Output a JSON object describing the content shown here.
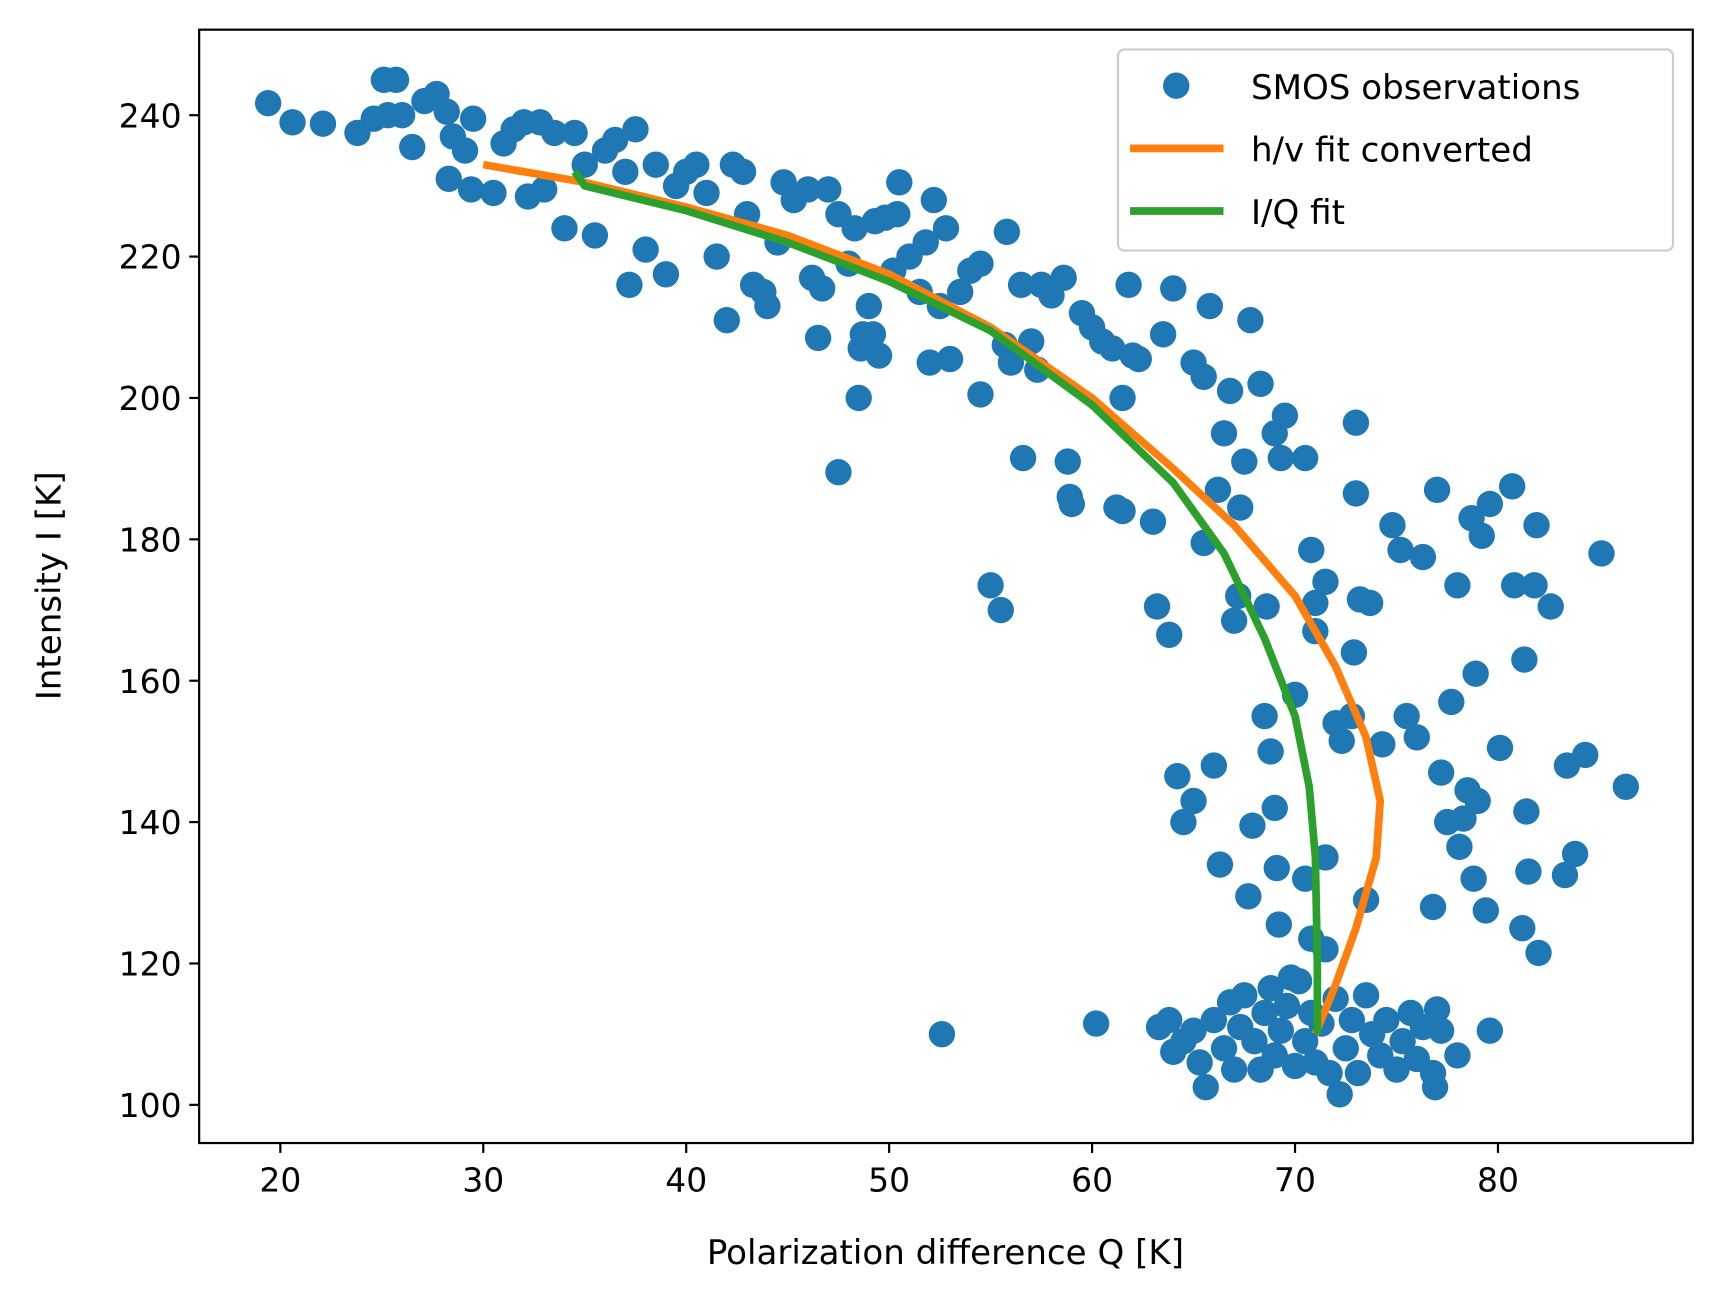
{
  "chart_data": {
    "type": "scatter",
    "title": "",
    "xlabel": "Polarization difference Q [K]",
    "ylabel": "Intensity I [K]",
    "xlim": [
      16,
      89.6
    ],
    "ylim": [
      94.6,
      252.1
    ],
    "xticks": [
      20,
      30,
      40,
      50,
      60,
      70,
      80
    ],
    "yticks": [
      100,
      120,
      140,
      160,
      180,
      200,
      220,
      240
    ],
    "grid": false,
    "legend_position": "top-right",
    "series": [
      {
        "name": "SMOS observations",
        "type": "scatter",
        "color": "#1f77b4",
        "points": [
          [
            19.4,
            241.7
          ],
          [
            20.6,
            239
          ],
          [
            22.1,
            238.8
          ],
          [
            23.8,
            237.5
          ],
          [
            25.1,
            245
          ],
          [
            25.7,
            245
          ],
          [
            24.6,
            239.5
          ],
          [
            25.3,
            240
          ],
          [
            26.0,
            240
          ],
          [
            26.5,
            235.5
          ],
          [
            27.1,
            242
          ],
          [
            27.7,
            243
          ],
          [
            28.2,
            240.5
          ],
          [
            28.3,
            231
          ],
          [
            28.5,
            237
          ],
          [
            29.1,
            235
          ],
          [
            29.5,
            239.5
          ],
          [
            29.4,
            229.5
          ],
          [
            30.5,
            229
          ],
          [
            31.0,
            236
          ],
          [
            31.5,
            238
          ],
          [
            32.0,
            239
          ],
          [
            32.2,
            228.5
          ],
          [
            32.8,
            239
          ],
          [
            33.0,
            229.5
          ],
          [
            33.5,
            237.5
          ],
          [
            34.0,
            224
          ],
          [
            34.5,
            237.5
          ],
          [
            35.0,
            233
          ],
          [
            35.5,
            223
          ],
          [
            36.0,
            235
          ],
          [
            36.5,
            236.5
          ],
          [
            37.0,
            232
          ],
          [
            37.2,
            216
          ],
          [
            37.5,
            238
          ],
          [
            38.0,
            221
          ],
          [
            38.5,
            233
          ],
          [
            39.0,
            217.5
          ],
          [
            39.5,
            230
          ],
          [
            40.0,
            232
          ],
          [
            40.5,
            233
          ],
          [
            41.0,
            229
          ],
          [
            41.5,
            220
          ],
          [
            42.0,
            211
          ],
          [
            42.3,
            233
          ],
          [
            42.8,
            232
          ],
          [
            43.0,
            226
          ],
          [
            43.3,
            216
          ],
          [
            43.8,
            215
          ],
          [
            44.0,
            213
          ],
          [
            44.5,
            222
          ],
          [
            44.8,
            230.5
          ],
          [
            45.3,
            228
          ],
          [
            46.0,
            229.5
          ],
          [
            46.2,
            217
          ],
          [
            46.5,
            208.5
          ],
          [
            46.7,
            215.5
          ],
          [
            47.0,
            229.5
          ],
          [
            47.5,
            226
          ],
          [
            47.5,
            189.5
          ],
          [
            48.0,
            219
          ],
          [
            48.3,
            224
          ],
          [
            48.5,
            200
          ],
          [
            48.6,
            207
          ],
          [
            48.7,
            209
          ],
          [
            49.0,
            213
          ],
          [
            49.2,
            209
          ],
          [
            49.3,
            225
          ],
          [
            49.5,
            206
          ],
          [
            49.8,
            225.5
          ],
          [
            50.2,
            218
          ],
          [
            50.4,
            226
          ],
          [
            50.5,
            230.5
          ],
          [
            51.0,
            220
          ],
          [
            51.5,
            215
          ],
          [
            51.8,
            222
          ],
          [
            52.0,
            205
          ],
          [
            52.2,
            228
          ],
          [
            52.5,
            213
          ],
          [
            52.6,
            110
          ],
          [
            52.8,
            224
          ],
          [
            53.0,
            205.5
          ],
          [
            53.5,
            215
          ],
          [
            54.0,
            218
          ],
          [
            54.5,
            200.5
          ],
          [
            54.5,
            219
          ],
          [
            55.0,
            173.5
          ],
          [
            55.5,
            170
          ],
          [
            55.7,
            207.5
          ],
          [
            55.8,
            223.5
          ],
          [
            56.0,
            205
          ],
          [
            56.5,
            216
          ],
          [
            56.6,
            191.5
          ],
          [
            57.0,
            208
          ],
          [
            57.3,
            204
          ],
          [
            57.5,
            216
          ],
          [
            58.0,
            214.5
          ],
          [
            58.6,
            217
          ],
          [
            58.8,
            191
          ],
          [
            58.9,
            186
          ],
          [
            59.0,
            185
          ],
          [
            59.5,
            212
          ],
          [
            60.0,
            210
          ],
          [
            60.2,
            111.5
          ],
          [
            60.5,
            208
          ],
          [
            61.0,
            207
          ],
          [
            61.2,
            184.5
          ],
          [
            61.5,
            184
          ],
          [
            61.5,
            200
          ],
          [
            61.8,
            216
          ],
          [
            62.0,
            206
          ],
          [
            62.3,
            205.5
          ],
          [
            63.0,
            182.5
          ],
          [
            63.2,
            170.5
          ],
          [
            63.5,
            209
          ],
          [
            63.8,
            166.5
          ],
          [
            64.0,
            215.5
          ],
          [
            64.2,
            146.5
          ],
          [
            64.5,
            140
          ],
          [
            65.0,
            143
          ],
          [
            65.0,
            205
          ],
          [
            65.5,
            203
          ],
          [
            65.5,
            179.5
          ],
          [
            65.8,
            213
          ],
          [
            66.0,
            148
          ],
          [
            66.2,
            187
          ],
          [
            66.3,
            134
          ],
          [
            66.5,
            195
          ],
          [
            66.8,
            201
          ],
          [
            67.0,
            168.5
          ],
          [
            67.2,
            172
          ],
          [
            67.3,
            184.5
          ],
          [
            67.5,
            191
          ],
          [
            67.7,
            129.5
          ],
          [
            67.8,
            211
          ],
          [
            67.9,
            139.5
          ],
          [
            68.3,
            202
          ],
          [
            68.5,
            155
          ],
          [
            68.6,
            170.5
          ],
          [
            68.8,
            150
          ],
          [
            69.0,
            195
          ],
          [
            69.0,
            142
          ],
          [
            69.1,
            133.5
          ],
          [
            69.2,
            125.5
          ],
          [
            69.3,
            191.5
          ],
          [
            69.5,
            197.5
          ],
          [
            70.0,
            158
          ],
          [
            70.5,
            191.5
          ],
          [
            70.5,
            132
          ],
          [
            70.8,
            178.5
          ],
          [
            71.0,
            171
          ],
          [
            71.0,
            167
          ],
          [
            71.5,
            174
          ],
          [
            71.5,
            135
          ],
          [
            72.0,
            154
          ],
          [
            72.3,
            151.5
          ],
          [
            72.8,
            155
          ],
          [
            72.9,
            164
          ],
          [
            73.0,
            186.5
          ],
          [
            73.2,
            171.5
          ],
          [
            73.0,
            196.5
          ],
          [
            73.5,
            129
          ],
          [
            73.7,
            171
          ],
          [
            74.3,
            151
          ],
          [
            74.8,
            182
          ],
          [
            75.2,
            178.5
          ],
          [
            75.5,
            155
          ],
          [
            76.0,
            152
          ],
          [
            76.3,
            177.5
          ],
          [
            76.8,
            128
          ],
          [
            77.0,
            187
          ],
          [
            77.2,
            147
          ],
          [
            77.5,
            140
          ],
          [
            77.7,
            157
          ],
          [
            78.0,
            173.5
          ],
          [
            78.1,
            136.5
          ],
          [
            78.3,
            140.5
          ],
          [
            78.5,
            144.5
          ],
          [
            78.7,
            183
          ],
          [
            78.8,
            132
          ],
          [
            78.9,
            161
          ],
          [
            79.0,
            143
          ],
          [
            79.2,
            180.5
          ],
          [
            79.4,
            127.5
          ],
          [
            79.6,
            185
          ],
          [
            79.6,
            110.5
          ],
          [
            80.1,
            150.5
          ],
          [
            80.7,
            187.5
          ],
          [
            80.8,
            173.5
          ],
          [
            81.2,
            125
          ],
          [
            81.3,
            163
          ],
          [
            81.4,
            141.5
          ],
          [
            81.5,
            133
          ],
          [
            81.8,
            173.5
          ],
          [
            81.9,
            182
          ],
          [
            82.0,
            121.5
          ],
          [
            82.6,
            170.5
          ],
          [
            83.3,
            132.5
          ],
          [
            83.4,
            148
          ],
          [
            83.8,
            135.5
          ],
          [
            84.3,
            149.5
          ],
          [
            85.1,
            178
          ],
          [
            86.3,
            145
          ],
          [
            63.3,
            111
          ],
          [
            63.8,
            112
          ],
          [
            64.0,
            107.5
          ],
          [
            64.5,
            109
          ],
          [
            65.0,
            110.5
          ],
          [
            65.3,
            106
          ],
          [
            65.6,
            102.5
          ],
          [
            66.0,
            112
          ],
          [
            66.5,
            108
          ],
          [
            66.8,
            114.5
          ],
          [
            67.0,
            105
          ],
          [
            67.3,
            111
          ],
          [
            67.5,
            115.5
          ],
          [
            68.0,
            109
          ],
          [
            68.3,
            105
          ],
          [
            68.5,
            113
          ],
          [
            68.8,
            116.5
          ],
          [
            69.0,
            107
          ],
          [
            69.3,
            110.5
          ],
          [
            69.6,
            114
          ],
          [
            70.0,
            105.5
          ],
          [
            70.2,
            117.5
          ],
          [
            70.5,
            109
          ],
          [
            70.8,
            113
          ],
          [
            71.0,
            106
          ],
          [
            71.3,
            111.5
          ],
          [
            71.7,
            104.5
          ],
          [
            72.0,
            115
          ],
          [
            72.2,
            101.5
          ],
          [
            72.5,
            108
          ],
          [
            72.8,
            112
          ],
          [
            73.1,
            104.5
          ],
          [
            73.5,
            115.5
          ],
          [
            73.8,
            110
          ],
          [
            74.2,
            107
          ],
          [
            74.5,
            112
          ],
          [
            75.0,
            105
          ],
          [
            75.3,
            109
          ],
          [
            75.7,
            113
          ],
          [
            76.0,
            106.5
          ],
          [
            76.3,
            111
          ],
          [
            76.8,
            104.5
          ],
          [
            77.0,
            113.5
          ],
          [
            77.2,
            110.5
          ],
          [
            76.9,
            102.5
          ],
          [
            78.0,
            107
          ],
          [
            70.8,
            123.5
          ],
          [
            71.5,
            122
          ],
          [
            69.8,
            118
          ]
        ]
      },
      {
        "name": "h/v fit converted",
        "type": "line",
        "color": "#ff7f0e",
        "points": [
          [
            30,
            233
          ],
          [
            35,
            230.5
          ],
          [
            40,
            227
          ],
          [
            45,
            223
          ],
          [
            50,
            217.5
          ],
          [
            55,
            210
          ],
          [
            60,
            200
          ],
          [
            64,
            190
          ],
          [
            67,
            182
          ],
          [
            70,
            172
          ],
          [
            72,
            162
          ],
          [
            73.5,
            152
          ],
          [
            74.2,
            143
          ],
          [
            74,
            135
          ],
          [
            73,
            125
          ],
          [
            72,
            117
          ],
          [
            71,
            110
          ]
        ]
      },
      {
        "name": "I/Q fit",
        "type": "line",
        "color": "#2ca02c",
        "points": [
          [
            34.5,
            232
          ],
          [
            35,
            230
          ],
          [
            40,
            226.5
          ],
          [
            45,
            222
          ],
          [
            50,
            216.5
          ],
          [
            55,
            209.5
          ],
          [
            60,
            199
          ],
          [
            64,
            188
          ],
          [
            66.5,
            178
          ],
          [
            68.5,
            166
          ],
          [
            70,
            155
          ],
          [
            70.7,
            145
          ],
          [
            71,
            135
          ],
          [
            71.1,
            120
          ],
          [
            71.1,
            110
          ]
        ]
      }
    ]
  }
}
